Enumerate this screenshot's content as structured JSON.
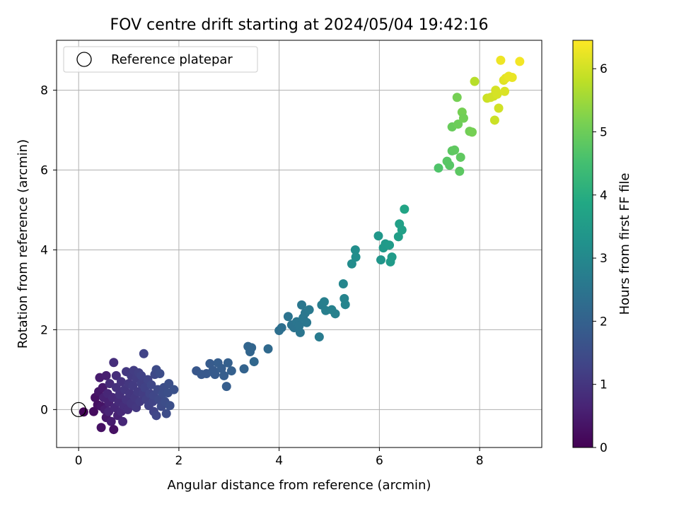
{
  "chart_data": {
    "type": "scatter",
    "title": "FOV centre drift starting at 2024/05/04 19:42:16",
    "xlabel": "Angular distance from reference (arcmin)",
    "ylabel": "Rotation from reference (arcmin)",
    "xlim": [
      -0.44,
      9.24
    ],
    "ylim": [
      -0.95,
      9.25
    ],
    "xticks": [
      0,
      2,
      4,
      6,
      8
    ],
    "yticks": [
      0,
      2,
      4,
      6,
      8
    ],
    "grid": true,
    "legend": {
      "placement": "upper-left",
      "entries": [
        "Reference platepar"
      ]
    },
    "reference_point": {
      "x": 0,
      "y": 0,
      "marker": "open-circle"
    },
    "colorbar": {
      "label": "Hours from first FF file",
      "range": [
        0,
        6.45
      ],
      "ticks": [
        0,
        1,
        2,
        3,
        4,
        5,
        6
      ],
      "colormap": "viridis"
    },
    "series": [
      {
        "points": [
          {
            "x": 0.1,
            "y": -0.06,
            "t": 0.05
          },
          {
            "x": 0.3,
            "y": -0.05,
            "t": 0.2
          },
          {
            "x": 0.33,
            "y": 0.3,
            "t": 0.3
          },
          {
            "x": 0.38,
            "y": 0.12,
            "t": 0.25
          },
          {
            "x": 0.4,
            "y": 0.45,
            "t": 0.4
          },
          {
            "x": 0.42,
            "y": 0.8,
            "t": 0.5
          },
          {
            "x": 0.45,
            "y": -0.45,
            "t": 0.3
          },
          {
            "x": 0.45,
            "y": 0.08,
            "t": 0.35
          },
          {
            "x": 0.48,
            "y": 0.55,
            "t": 0.45
          },
          {
            "x": 0.5,
            "y": 0.3,
            "t": 0.6
          },
          {
            "x": 0.52,
            "y": 0.0,
            "t": 0.5
          },
          {
            "x": 0.55,
            "y": -0.2,
            "t": 0.4
          },
          {
            "x": 0.55,
            "y": 0.85,
            "t": 0.55
          },
          {
            "x": 0.58,
            "y": 0.4,
            "t": 0.7
          },
          {
            "x": 0.6,
            "y": 0.18,
            "t": 0.6
          },
          {
            "x": 0.6,
            "y": -0.05,
            "t": 0.65
          },
          {
            "x": 0.62,
            "y": 0.65,
            "t": 0.8
          },
          {
            "x": 0.65,
            "y": -0.3,
            "t": 0.5
          },
          {
            "x": 0.68,
            "y": 0.3,
            "t": 0.75
          },
          {
            "x": 0.7,
            "y": 1.18,
            "t": 0.85
          },
          {
            "x": 0.7,
            "y": -0.5,
            "t": 0.3
          },
          {
            "x": 0.72,
            "y": 0.05,
            "t": 0.7
          },
          {
            "x": 0.75,
            "y": 0.55,
            "t": 0.9
          },
          {
            "x": 0.75,
            "y": 0.85,
            "t": 0.85
          },
          {
            "x": 0.78,
            "y": -0.15,
            "t": 0.6
          },
          {
            "x": 0.8,
            "y": 0.2,
            "t": 0.8
          },
          {
            "x": 0.82,
            "y": 0.38,
            "t": 0.9
          },
          {
            "x": 0.85,
            "y": 0.7,
            "t": 0.95
          },
          {
            "x": 0.85,
            "y": -0.05,
            "t": 0.75
          },
          {
            "x": 0.88,
            "y": -0.3,
            "t": 0.7
          },
          {
            "x": 0.9,
            "y": 0.1,
            "t": 0.85
          },
          {
            "x": 0.92,
            "y": 0.5,
            "t": 1.0
          },
          {
            "x": 0.95,
            "y": 0.95,
            "t": 1.05
          },
          {
            "x": 0.95,
            "y": 0.25,
            "t": 0.95
          },
          {
            "x": 0.98,
            "y": 0.0,
            "t": 0.85
          },
          {
            "x": 1.0,
            "y": 0.65,
            "t": 1.05
          },
          {
            "x": 1.02,
            "y": 0.4,
            "t": 1.0
          },
          {
            "x": 1.05,
            "y": 0.85,
            "t": 1.1
          },
          {
            "x": 1.05,
            "y": 0.15,
            "t": 1.0
          },
          {
            "x": 1.08,
            "y": 0.6,
            "t": 1.1
          },
          {
            "x": 1.1,
            "y": 0.98,
            "t": 1.15
          },
          {
            "x": 1.12,
            "y": 0.3,
            "t": 1.05
          },
          {
            "x": 1.15,
            "y": 0.78,
            "t": 1.15
          },
          {
            "x": 1.15,
            "y": 0.05,
            "t": 1.05
          },
          {
            "x": 1.18,
            "y": 0.45,
            "t": 1.1
          },
          {
            "x": 1.2,
            "y": 0.92,
            "t": 1.2
          },
          {
            "x": 1.22,
            "y": 0.2,
            "t": 1.1
          },
          {
            "x": 1.25,
            "y": 0.65,
            "t": 1.2
          },
          {
            "x": 1.25,
            "y": 0.85,
            "t": 1.25
          },
          {
            "x": 1.28,
            "y": 0.4,
            "t": 1.15
          },
          {
            "x": 1.3,
            "y": 1.4,
            "t": 1.3
          },
          {
            "x": 1.32,
            "y": 0.55,
            "t": 1.25
          },
          {
            "x": 1.35,
            "y": 0.25,
            "t": 1.2
          },
          {
            "x": 1.38,
            "y": 0.75,
            "t": 1.3
          },
          {
            "x": 1.4,
            "y": 0.1,
            "t": 1.25
          },
          {
            "x": 1.42,
            "y": 0.4,
            "t": 1.3
          },
          {
            "x": 1.45,
            "y": 0.62,
            "t": 1.35
          },
          {
            "x": 1.48,
            "y": 0.2,
            "t": 1.3
          },
          {
            "x": 1.5,
            "y": 0.35,
            "t": 1.35
          },
          {
            "x": 1.5,
            "y": -0.05,
            "t": 1.3
          },
          {
            "x": 1.52,
            "y": 0.88,
            "t": 1.4
          },
          {
            "x": 1.55,
            "y": 1.0,
            "t": 1.45
          },
          {
            "x": 1.55,
            "y": -0.15,
            "t": 1.35
          },
          {
            "x": 1.58,
            "y": 0.5,
            "t": 1.4
          },
          {
            "x": 1.6,
            "y": 0.25,
            "t": 1.4
          },
          {
            "x": 1.62,
            "y": 0.9,
            "t": 1.5
          },
          {
            "x": 1.65,
            "y": 0.08,
            "t": 1.45
          },
          {
            "x": 1.68,
            "y": 0.4,
            "t": 1.5
          },
          {
            "x": 1.7,
            "y": 0.55,
            "t": 1.5
          },
          {
            "x": 1.72,
            "y": 0.2,
            "t": 1.5
          },
          {
            "x": 1.75,
            "y": -0.1,
            "t": 1.5
          },
          {
            "x": 1.78,
            "y": 0.42,
            "t": 1.55
          },
          {
            "x": 1.8,
            "y": 0.65,
            "t": 1.55
          },
          {
            "x": 1.82,
            "y": 0.1,
            "t": 1.55
          },
          {
            "x": 1.9,
            "y": 0.5,
            "t": 1.6
          },
          {
            "x": 2.35,
            "y": 0.97,
            "t": 1.75
          },
          {
            "x": 2.45,
            "y": 0.88,
            "t": 1.8
          },
          {
            "x": 2.55,
            "y": 0.9,
            "t": 1.8
          },
          {
            "x": 2.62,
            "y": 1.15,
            "t": 1.85
          },
          {
            "x": 2.68,
            "y": 0.98,
            "t": 1.85
          },
          {
            "x": 2.72,
            "y": 0.88,
            "t": 1.85
          },
          {
            "x": 2.78,
            "y": 1.17,
            "t": 1.9
          },
          {
            "x": 2.85,
            "y": 1.03,
            "t": 1.9
          },
          {
            "x": 2.9,
            "y": 0.85,
            "t": 1.9
          },
          {
            "x": 2.95,
            "y": 0.58,
            "t": 1.9
          },
          {
            "x": 2.98,
            "y": 1.17,
            "t": 1.95
          },
          {
            "x": 3.05,
            "y": 0.97,
            "t": 1.95
          },
          {
            "x": 3.3,
            "y": 1.02,
            "t": 2.05
          },
          {
            "x": 3.38,
            "y": 1.58,
            "t": 2.1
          },
          {
            "x": 3.42,
            "y": 1.45,
            "t": 2.1
          },
          {
            "x": 3.45,
            "y": 1.55,
            "t": 2.1
          },
          {
            "x": 3.5,
            "y": 1.2,
            "t": 2.15
          },
          {
            "x": 3.78,
            "y": 1.52,
            "t": 2.2
          },
          {
            "x": 4.0,
            "y": 1.98,
            "t": 2.35
          },
          {
            "x": 4.05,
            "y": 2.05,
            "t": 2.35
          },
          {
            "x": 4.18,
            "y": 2.33,
            "t": 2.45
          },
          {
            "x": 4.25,
            "y": 2.12,
            "t": 2.45
          },
          {
            "x": 4.3,
            "y": 2.05,
            "t": 2.45
          },
          {
            "x": 4.35,
            "y": 2.2,
            "t": 2.5
          },
          {
            "x": 4.4,
            "y": 2.1,
            "t": 2.5
          },
          {
            "x": 4.42,
            "y": 1.93,
            "t": 2.5
          },
          {
            "x": 4.45,
            "y": 2.62,
            "t": 2.55
          },
          {
            "x": 4.48,
            "y": 2.3,
            "t": 2.55
          },
          {
            "x": 4.52,
            "y": 2.42,
            "t": 2.55
          },
          {
            "x": 4.55,
            "y": 2.18,
            "t": 2.55
          },
          {
            "x": 4.6,
            "y": 2.5,
            "t": 2.6
          },
          {
            "x": 4.8,
            "y": 1.82,
            "t": 2.65
          },
          {
            "x": 4.85,
            "y": 2.62,
            "t": 2.7
          },
          {
            "x": 4.9,
            "y": 2.7,
            "t": 2.75
          },
          {
            "x": 4.93,
            "y": 2.48,
            "t": 2.75
          },
          {
            "x": 5.05,
            "y": 2.5,
            "t": 2.8
          },
          {
            "x": 5.12,
            "y": 2.4,
            "t": 2.8
          },
          {
            "x": 5.28,
            "y": 3.15,
            "t": 2.95
          },
          {
            "x": 5.3,
            "y": 2.78,
            "t": 2.9
          },
          {
            "x": 5.32,
            "y": 2.63,
            "t": 2.9
          },
          {
            "x": 5.45,
            "y": 3.65,
            "t": 3.1
          },
          {
            "x": 5.52,
            "y": 4.0,
            "t": 3.15
          },
          {
            "x": 5.53,
            "y": 3.82,
            "t": 3.15
          },
          {
            "x": 5.98,
            "y": 4.35,
            "t": 3.4
          },
          {
            "x": 6.03,
            "y": 3.75,
            "t": 3.35
          },
          {
            "x": 6.08,
            "y": 4.05,
            "t": 3.45
          },
          {
            "x": 6.12,
            "y": 4.15,
            "t": 3.45
          },
          {
            "x": 6.2,
            "y": 4.12,
            "t": 3.5
          },
          {
            "x": 6.22,
            "y": 3.7,
            "t": 3.5
          },
          {
            "x": 6.25,
            "y": 3.82,
            "t": 3.5
          },
          {
            "x": 6.38,
            "y": 4.33,
            "t": 3.6
          },
          {
            "x": 6.4,
            "y": 4.65,
            "t": 3.65
          },
          {
            "x": 6.45,
            "y": 4.5,
            "t": 3.65
          },
          {
            "x": 6.5,
            "y": 5.02,
            "t": 3.75
          },
          {
            "x": 7.18,
            "y": 6.05,
            "t": 4.65
          },
          {
            "x": 7.35,
            "y": 6.22,
            "t": 4.75
          },
          {
            "x": 7.4,
            "y": 6.12,
            "t": 4.75
          },
          {
            "x": 7.45,
            "y": 6.48,
            "t": 4.8
          },
          {
            "x": 7.45,
            "y": 7.08,
            "t": 4.95
          },
          {
            "x": 7.5,
            "y": 6.5,
            "t": 4.85
          },
          {
            "x": 7.55,
            "y": 7.82,
            "t": 5.1
          },
          {
            "x": 7.57,
            "y": 7.15,
            "t": 5.0
          },
          {
            "x": 7.6,
            "y": 5.97,
            "t": 4.8
          },
          {
            "x": 7.62,
            "y": 6.32,
            "t": 4.85
          },
          {
            "x": 7.65,
            "y": 7.45,
            "t": 5.1
          },
          {
            "x": 7.68,
            "y": 7.3,
            "t": 5.05
          },
          {
            "x": 7.8,
            "y": 6.97,
            "t": 5.05
          },
          {
            "x": 7.85,
            "y": 6.95,
            "t": 5.1
          },
          {
            "x": 7.9,
            "y": 8.22,
            "t": 5.75
          },
          {
            "x": 8.15,
            "y": 7.8,
            "t": 5.95
          },
          {
            "x": 8.22,
            "y": 7.82,
            "t": 6.0
          },
          {
            "x": 8.28,
            "y": 7.85,
            "t": 6.0
          },
          {
            "x": 8.3,
            "y": 7.25,
            "t": 5.95
          },
          {
            "x": 8.32,
            "y": 8.0,
            "t": 6.05
          },
          {
            "x": 8.35,
            "y": 7.9,
            "t": 6.05
          },
          {
            "x": 8.38,
            "y": 7.55,
            "t": 6.0
          },
          {
            "x": 8.42,
            "y": 8.75,
            "t": 6.3
          },
          {
            "x": 8.48,
            "y": 8.25,
            "t": 6.15
          },
          {
            "x": 8.5,
            "y": 7.97,
            "t": 6.1
          },
          {
            "x": 8.52,
            "y": 8.3,
            "t": 6.2
          },
          {
            "x": 8.58,
            "y": 8.35,
            "t": 6.25
          },
          {
            "x": 8.65,
            "y": 8.32,
            "t": 6.25
          },
          {
            "x": 8.8,
            "y": 8.72,
            "t": 6.35
          }
        ]
      }
    ]
  }
}
